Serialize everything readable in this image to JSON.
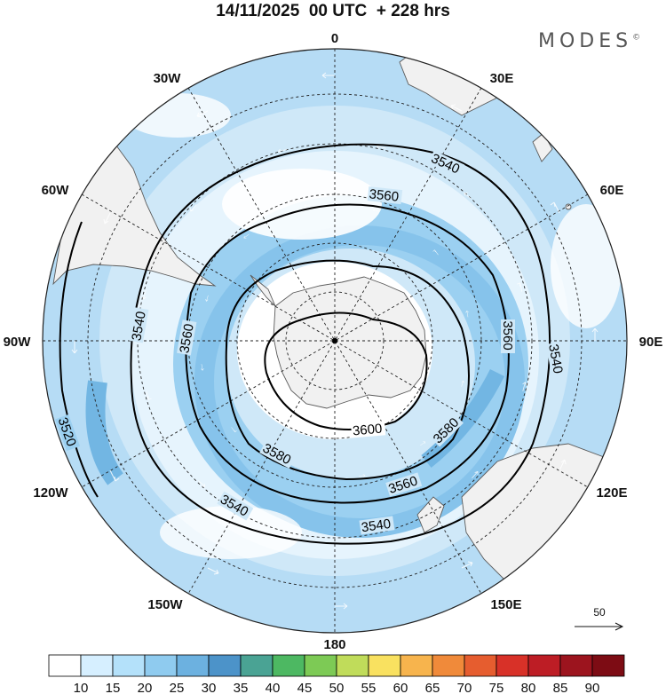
{
  "header": {
    "title": "14/11/2025  00 UTC  + 228 hrs",
    "brand": "MODES",
    "brand_mark": "©"
  },
  "map": {
    "projection": "polar stereographic",
    "hemisphere": "south",
    "pole_marker": "South Pole",
    "longitude_labels": [
      {
        "text": "0",
        "lon": 0
      },
      {
        "text": "30E",
        "lon": 30
      },
      {
        "text": "60E",
        "lon": 60
      },
      {
        "text": "90E",
        "lon": 90
      },
      {
        "text": "120E",
        "lon": 120
      },
      {
        "text": "150E",
        "lon": 150
      },
      {
        "text": "180",
        "lon": 180
      },
      {
        "text": "150W",
        "lon": -150
      },
      {
        "text": "120W",
        "lon": -120
      },
      {
        "text": "90W",
        "lon": -90
      },
      {
        "text": "60W",
        "lon": -60
      },
      {
        "text": "30W",
        "lon": -30
      }
    ],
    "contour_labels": [
      {
        "text": "3540",
        "ring": "outer"
      },
      {
        "text": "3560",
        "ring": "middle"
      },
      {
        "text": "3580",
        "ring": "inner"
      },
      {
        "text": "3600",
        "ring": "center"
      },
      {
        "text": "3520",
        "ring": "edge"
      }
    ],
    "wind_reference": {
      "value": "50"
    },
    "colors": {
      "land": "#f1f1f1",
      "coast": "#5a5a5a",
      "contour": "#000000",
      "graticule": "#222222",
      "wind_arrow": "#ffffff"
    }
  },
  "colorbar": {
    "ticks": [
      "10",
      "15",
      "20",
      "25",
      "30",
      "35",
      "40",
      "45",
      "50",
      "55",
      "60",
      "65",
      "70",
      "75",
      "80",
      "85",
      "90"
    ],
    "colors": [
      "#ffffff",
      "#d6efff",
      "#b4e1fa",
      "#8fcbef",
      "#6cb1e0",
      "#4c93c9",
      "#4aa394",
      "#4db862",
      "#7dca55",
      "#c0dc5a",
      "#f9e160",
      "#f7b44d",
      "#f08a3a",
      "#e65d2f",
      "#d83128",
      "#bd1d25",
      "#9c141e",
      "#7d0c14"
    ]
  }
}
